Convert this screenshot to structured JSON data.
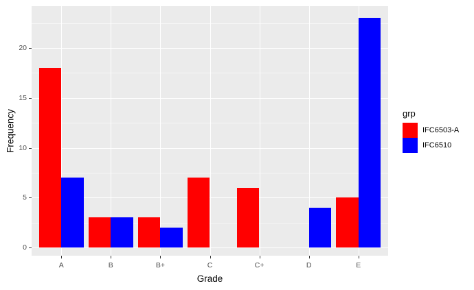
{
  "chart_data": {
    "type": "bar",
    "title": "",
    "xlabel": "Grade",
    "ylabel": "Frequency",
    "categories": [
      "A",
      "B",
      "B+",
      "C",
      "C+",
      "D",
      "E"
    ],
    "series": [
      {
        "name": "IFC6503-A",
        "color": "#FF0000",
        "values": [
          18,
          3,
          3,
          7,
          6,
          0,
          5
        ]
      },
      {
        "name": "IFC6510",
        "color": "#0000FF",
        "values": [
          7,
          3,
          2,
          0,
          0,
          4,
          23
        ]
      }
    ],
    "y_ticks": [
      0,
      5,
      10,
      15,
      20
    ],
    "y_minor_ticks": [
      2.5,
      7.5,
      12.5,
      17.5,
      22.5
    ],
    "ylim": [
      0,
      23
    ],
    "legend_title": "grp",
    "legend_position": "right",
    "grid": true,
    "bar_layout": "dodge",
    "panel_bg": "#EBEBEB",
    "grid_color": "#FFFFFF",
    "tick_label_color": "#4D4D4D"
  }
}
